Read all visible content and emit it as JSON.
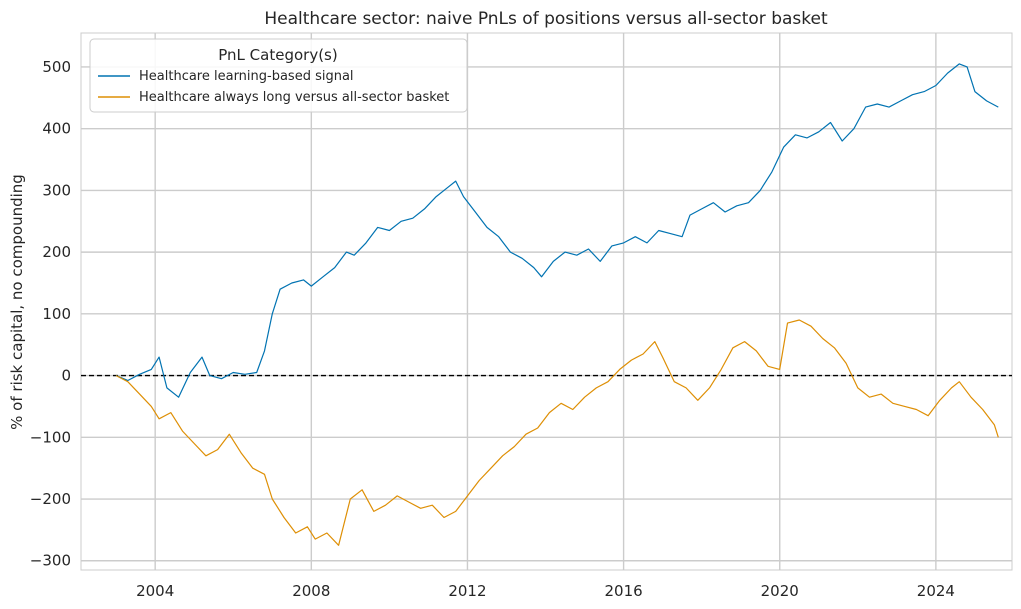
{
  "chart_data": {
    "type": "line",
    "title": "Healthcare sector: naive PnLs of positions versus all-sector basket",
    "xlabel": "",
    "ylabel": "% of risk capital, no compounding",
    "xlim": [
      2002.1,
      2025.95
    ],
    "ylim": [
      -315,
      555
    ],
    "x_ticks": [
      2004,
      2008,
      2012,
      2016,
      2020,
      2024
    ],
    "x_tick_labels": [
      "2004",
      "2008",
      "2012",
      "2016",
      "2020",
      "2024"
    ],
    "y_ticks": [
      -300,
      -200,
      -100,
      0,
      100,
      200,
      300,
      400,
      500
    ],
    "y_tick_labels": [
      "−300",
      "−200",
      "−100",
      "0",
      "100",
      "200",
      "300",
      "400",
      "500"
    ],
    "grid": true,
    "reference_line": {
      "y": 0,
      "style": "dashed",
      "color": "#000000"
    },
    "legend": {
      "title": "PnL Category(s)",
      "placement": "top-left"
    },
    "series": [
      {
        "name": "Healthcare learning-based signal",
        "color": "#0173b2",
        "x": [
          2003.0,
          2003.3,
          2003.6,
          2003.9,
          2004.1,
          2004.3,
          2004.6,
          2004.9,
          2005.2,
          2005.4,
          2005.7,
          2006.0,
          2006.3,
          2006.6,
          2006.8,
          2007.0,
          2007.2,
          2007.5,
          2007.8,
          2008.0,
          2008.3,
          2008.6,
          2008.9,
          2009.1,
          2009.4,
          2009.7,
          2010.0,
          2010.3,
          2010.6,
          2010.9,
          2011.2,
          2011.5,
          2011.7,
          2011.9,
          2012.2,
          2012.5,
          2012.8,
          2013.1,
          2013.4,
          2013.7,
          2013.9,
          2014.2,
          2014.5,
          2014.8,
          2015.1,
          2015.4,
          2015.7,
          2016.0,
          2016.3,
          2016.6,
          2016.9,
          2017.2,
          2017.5,
          2017.7,
          2018.0,
          2018.3,
          2018.6,
          2018.9,
          2019.2,
          2019.5,
          2019.8,
          2020.1,
          2020.4,
          2020.7,
          2021.0,
          2021.3,
          2021.6,
          2021.9,
          2022.2,
          2022.5,
          2022.8,
          2023.1,
          2023.4,
          2023.7,
          2024.0,
          2024.3,
          2024.6,
          2024.8,
          2025.0,
          2025.3,
          2025.6
        ],
        "values": [
          0,
          -8,
          2,
          10,
          30,
          -20,
          -35,
          5,
          30,
          0,
          -5,
          5,
          2,
          5,
          40,
          100,
          140,
          150,
          155,
          145,
          160,
          175,
          200,
          195,
          215,
          240,
          235,
          250,
          255,
          270,
          290,
          305,
          315,
          290,
          265,
          240,
          225,
          200,
          190,
          175,
          160,
          185,
          200,
          195,
          205,
          185,
          210,
          215,
          225,
          215,
          235,
          230,
          225,
          260,
          270,
          280,
          265,
          275,
          280,
          300,
          330,
          370,
          390,
          385,
          395,
          410,
          380,
          400,
          435,
          440,
          435,
          445,
          455,
          460,
          470,
          490,
          505,
          500,
          460,
          445,
          435
        ]
      },
      {
        "name": "Healthcare always long versus all-sector basket",
        "color": "#de8f05",
        "x": [
          2003.0,
          2003.3,
          2003.6,
          2003.9,
          2004.1,
          2004.4,
          2004.7,
          2005.0,
          2005.3,
          2005.6,
          2005.9,
          2006.2,
          2006.5,
          2006.8,
          2007.0,
          2007.3,
          2007.6,
          2007.9,
          2008.1,
          2008.4,
          2008.7,
          2009.0,
          2009.3,
          2009.6,
          2009.9,
          2010.2,
          2010.5,
          2010.8,
          2011.1,
          2011.4,
          2011.7,
          2012.0,
          2012.3,
          2012.6,
          2012.9,
          2013.2,
          2013.5,
          2013.8,
          2014.1,
          2014.4,
          2014.7,
          2015.0,
          2015.3,
          2015.6,
          2015.9,
          2016.2,
          2016.5,
          2016.8,
          2017.0,
          2017.3,
          2017.6,
          2017.9,
          2018.2,
          2018.5,
          2018.8,
          2019.1,
          2019.4,
          2019.7,
          2020.0,
          2020.2,
          2020.5,
          2020.8,
          2021.1,
          2021.4,
          2021.7,
          2022.0,
          2022.3,
          2022.6,
          2022.9,
          2023.2,
          2023.5,
          2023.8,
          2024.1,
          2024.4,
          2024.6,
          2024.9,
          2025.2,
          2025.5,
          2025.6
        ],
        "values": [
          0,
          -10,
          -30,
          -50,
          -70,
          -60,
          -90,
          -110,
          -130,
          -120,
          -95,
          -125,
          -150,
          -160,
          -200,
          -230,
          -255,
          -245,
          -265,
          -255,
          -275,
          -200,
          -185,
          -220,
          -210,
          -195,
          -205,
          -215,
          -210,
          -230,
          -220,
          -195,
          -170,
          -150,
          -130,
          -115,
          -95,
          -85,
          -60,
          -45,
          -55,
          -35,
          -20,
          -10,
          10,
          25,
          35,
          55,
          30,
          -10,
          -20,
          -40,
          -20,
          10,
          45,
          55,
          40,
          15,
          10,
          85,
          90,
          80,
          60,
          45,
          20,
          -20,
          -35,
          -30,
          -45,
          -50,
          -55,
          -65,
          -40,
          -20,
          -10,
          -35,
          -55,
          -80,
          -100
        ]
      }
    ]
  }
}
